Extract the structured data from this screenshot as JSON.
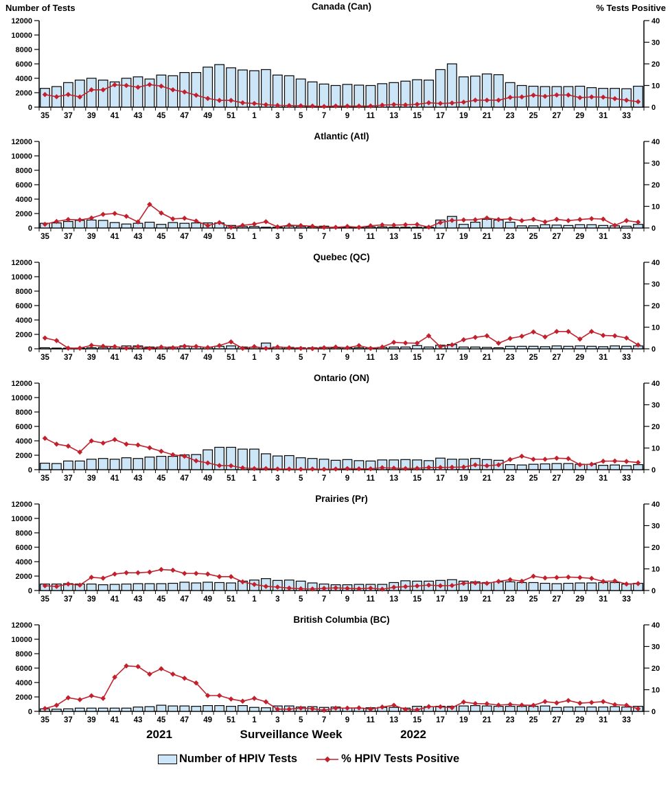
{
  "header": {
    "left_axis_label": "Number of Tests",
    "right_axis_label": "% Tests Positive"
  },
  "x_axis": {
    "title": "Surveillance Week",
    "year_left": "2021",
    "year_right": "2022",
    "tick_labels": [
      "35",
      "37",
      "39",
      "41",
      "43",
      "45",
      "47",
      "49",
      "51",
      "1",
      "3",
      "5",
      "7",
      "9",
      "11",
      "13",
      "15",
      "17",
      "19",
      "21",
      "23",
      "25",
      "27",
      "29",
      "31",
      "33"
    ]
  },
  "legend": {
    "bars_label": "Number of HPIV Tests",
    "line_label": "% HPIV Tests Positive"
  },
  "colors": {
    "bar_fill": "#CCE6F7",
    "bar_stroke": "#000000",
    "line": "#C2202C",
    "axis": "#000000"
  },
  "chart_data": {
    "type": "bar+line",
    "categories": [
      35,
      36,
      37,
      38,
      39,
      40,
      41,
      42,
      43,
      44,
      45,
      46,
      47,
      48,
      49,
      50,
      51,
      52,
      1,
      2,
      3,
      4,
      5,
      6,
      7,
      8,
      9,
      10,
      11,
      12,
      13,
      14,
      15,
      16,
      17,
      18,
      19,
      20,
      21,
      22,
      23,
      24,
      25,
      26,
      27,
      28,
      29,
      30,
      31,
      32,
      33,
      34
    ],
    "y_left": {
      "label": "Number of Tests",
      "min": 0,
      "max": 12000,
      "tick_step": 2000
    },
    "y_right": {
      "label": "% Tests Positive",
      "min": 0,
      "max": 40,
      "tick_step": 10
    },
    "bar_series_name": "Number of HPIV Tests",
    "line_series_name": "% HPIV Tests Positive",
    "panels": [
      {
        "region": "Canada (Can)",
        "tests": [
          2600,
          2850,
          3400,
          3750,
          4000,
          3750,
          3500,
          4000,
          4200,
          3900,
          4450,
          4350,
          4800,
          4800,
          5550,
          5900,
          5450,
          5150,
          5050,
          5200,
          4450,
          4350,
          3900,
          3500,
          3200,
          3000,
          3150,
          3050,
          3000,
          3250,
          3400,
          3600,
          3800,
          3750,
          5200,
          6000,
          4200,
          4300,
          4600,
          4500,
          3400,
          3000,
          2900,
          2850,
          2850,
          2850,
          2900,
          2700,
          2600,
          2600,
          2550,
          2900
        ],
        "pct_positive": [
          5.8,
          4.8,
          5.8,
          4.7,
          8.0,
          8.0,
          10.3,
          10.0,
          9.2,
          10.4,
          9.7,
          8.0,
          7.0,
          5.5,
          4.0,
          3.1,
          3.1,
          2.0,
          1.7,
          1.1,
          0.8,
          0.7,
          0.6,
          0.5,
          0.3,
          0.5,
          0.5,
          0.5,
          0.5,
          0.9,
          1.2,
          1.0,
          1.3,
          2.0,
          1.7,
          1.9,
          2.3,
          3.2,
          3.2,
          3.2,
          4.5,
          4.7,
          5.5,
          5.0,
          5.6,
          5.6,
          4.4,
          4.7,
          4.6,
          3.9,
          3.2,
          2.5
        ]
      },
      {
        "region": "Atlantic (Atl)",
        "tests": [
          650,
          700,
          900,
          1050,
          1100,
          1050,
          750,
          550,
          650,
          800,
          500,
          750,
          650,
          700,
          700,
          700,
          350,
          200,
          200,
          100,
          100,
          250,
          200,
          150,
          250,
          100,
          100,
          100,
          150,
          150,
          100,
          100,
          100,
          100,
          1100,
          1600,
          500,
          800,
          1200,
          1100,
          800,
          300,
          300,
          450,
          400,
          350,
          450,
          450,
          350,
          300,
          250,
          500
        ],
        "pct_positive": [
          1.7,
          3.0,
          3.9,
          3.7,
          4.6,
          6.3,
          6.7,
          5.4,
          2.8,
          10.9,
          6.9,
          4.2,
          4.5,
          3.2,
          1.1,
          2.5,
          0.3,
          1.2,
          1.8,
          2.9,
          0.5,
          1.3,
          1.1,
          0.8,
          0.3,
          0.3,
          0.7,
          0.3,
          1.0,
          1.4,
          1.3,
          1.5,
          1.6,
          0.4,
          2.5,
          3.5,
          3.7,
          3.8,
          4.6,
          3.9,
          4.2,
          3.4,
          4.0,
          2.8,
          4.0,
          3.4,
          3.9,
          4.3,
          4.1,
          1.2,
          3.4,
          2.7
        ]
      },
      {
        "region": "Quebec (QC)",
        "tests": [
          150,
          100,
          100,
          100,
          150,
          200,
          250,
          400,
          400,
          250,
          250,
          250,
          400,
          300,
          200,
          350,
          400,
          250,
          200,
          800,
          250,
          200,
          150,
          150,
          200,
          150,
          150,
          150,
          150,
          200,
          250,
          250,
          450,
          250,
          500,
          600,
          250,
          250,
          200,
          150,
          350,
          350,
          350,
          300,
          400,
          350,
          400,
          350,
          300,
          400,
          350,
          400
        ],
        "pct_positive": [
          5.0,
          3.8,
          0.3,
          0.3,
          1.6,
          1.2,
          1.0,
          0.3,
          1.0,
          0.2,
          0.8,
          0.5,
          1.2,
          1.1,
          0.6,
          1.5,
          3.2,
          0.2,
          1.0,
          0.2,
          0.8,
          0.5,
          0.2,
          0.1,
          0.5,
          0.8,
          0.5,
          1.5,
          0.2,
          0.8,
          3.0,
          2.7,
          2.6,
          6.0,
          1.0,
          1.8,
          4.2,
          5.3,
          6.0,
          2.6,
          4.8,
          5.8,
          7.8,
          5.5,
          8.0,
          8.0,
          4.5,
          8.0,
          6.2,
          6.0,
          5.0,
          1.8
        ]
      },
      {
        "region": "Ontario (ON)",
        "tests": [
          900,
          850,
          1200,
          1200,
          1450,
          1550,
          1450,
          1650,
          1550,
          1750,
          1850,
          1850,
          2050,
          2100,
          2750,
          3100,
          3100,
          2850,
          2850,
          2200,
          1900,
          1950,
          1650,
          1550,
          1450,
          1300,
          1400,
          1250,
          1200,
          1350,
          1350,
          1400,
          1350,
          1250,
          1600,
          1450,
          1450,
          1550,
          1400,
          1300,
          700,
          650,
          750,
          800,
          850,
          850,
          750,
          750,
          600,
          650,
          550,
          700
        ],
        "pct_positive": [
          14.5,
          11.8,
          10.9,
          8.1,
          13.3,
          12.3,
          13.9,
          11.8,
          11.4,
          10.1,
          8.5,
          6.9,
          6.2,
          4.1,
          3.1,
          1.9,
          1.8,
          0.8,
          0.5,
          0.5,
          0.3,
          0.3,
          0.2,
          0.3,
          0.2,
          0.3,
          0.5,
          0.4,
          0.4,
          0.9,
          0.7,
          0.5,
          0.6,
          1.0,
          1.0,
          1.1,
          1.2,
          2.2,
          1.8,
          2.2,
          4.7,
          6.2,
          4.8,
          4.8,
          5.3,
          5.1,
          2.3,
          2.5,
          3.9,
          4.0,
          3.8,
          3.3
        ]
      },
      {
        "region": "Prairies (Pr)",
        "tests": [
          900,
          900,
          950,
          900,
          900,
          800,
          850,
          900,
          950,
          950,
          950,
          1000,
          1150,
          1050,
          1150,
          1100,
          1050,
          1300,
          1450,
          1650,
          1400,
          1450,
          1300,
          1050,
          900,
          800,
          800,
          850,
          850,
          850,
          1100,
          1350,
          1300,
          1300,
          1400,
          1500,
          1300,
          1200,
          1100,
          1200,
          1200,
          1100,
          1100,
          1000,
          950,
          1000,
          1050,
          1050,
          1100,
          1100,
          900,
          1000
        ],
        "pct_positive": [
          2.2,
          1.9,
          3.0,
          2.5,
          6.1,
          5.7,
          7.6,
          8.2,
          8.2,
          8.5,
          9.7,
          9.4,
          7.9,
          7.9,
          7.6,
          6.4,
          6.4,
          4.0,
          2.8,
          1.9,
          1.6,
          1.1,
          0.8,
          0.7,
          1.0,
          1.2,
          1.0,
          0.8,
          1.1,
          0.6,
          1.5,
          1.8,
          2.1,
          2.5,
          2.2,
          2.3,
          3.3,
          3.5,
          3.3,
          4.2,
          5.0,
          4.3,
          6.6,
          5.8,
          6.0,
          6.2,
          6.0,
          5.6,
          4.2,
          4.4,
          3.0,
          3.2
        ]
      },
      {
        "region": "British Columbia (BC)",
        "tests": [
          350,
          300,
          350,
          450,
          450,
          450,
          450,
          450,
          600,
          650,
          850,
          750,
          750,
          700,
          800,
          800,
          700,
          800,
          550,
          500,
          750,
          750,
          600,
          650,
          550,
          600,
          450,
          450,
          500,
          550,
          550,
          450,
          700,
          650,
          700,
          700,
          750,
          800,
          750,
          700,
          700,
          700,
          700,
          750,
          550,
          600,
          600,
          600,
          600,
          650,
          600,
          700
        ],
        "pct_positive": [
          1.3,
          2.8,
          6.3,
          5.4,
          7.2,
          6.0,
          15.8,
          21.0,
          20.7,
          17.2,
          19.7,
          17.2,
          15.3,
          13.1,
          7.3,
          7.3,
          5.7,
          4.7,
          6.0,
          4.4,
          1.0,
          1.0,
          1.5,
          1.2,
          0.5,
          1.5,
          1.5,
          1.6,
          1.0,
          2.0,
          2.8,
          0.9,
          0.7,
          2.2,
          2.1,
          1.7,
          4.3,
          3.6,
          3.5,
          2.9,
          3.2,
          2.9,
          2.8,
          4.5,
          3.9,
          5.0,
          3.8,
          4.1,
          4.5,
          3.1,
          2.8,
          1.2
        ]
      }
    ]
  }
}
